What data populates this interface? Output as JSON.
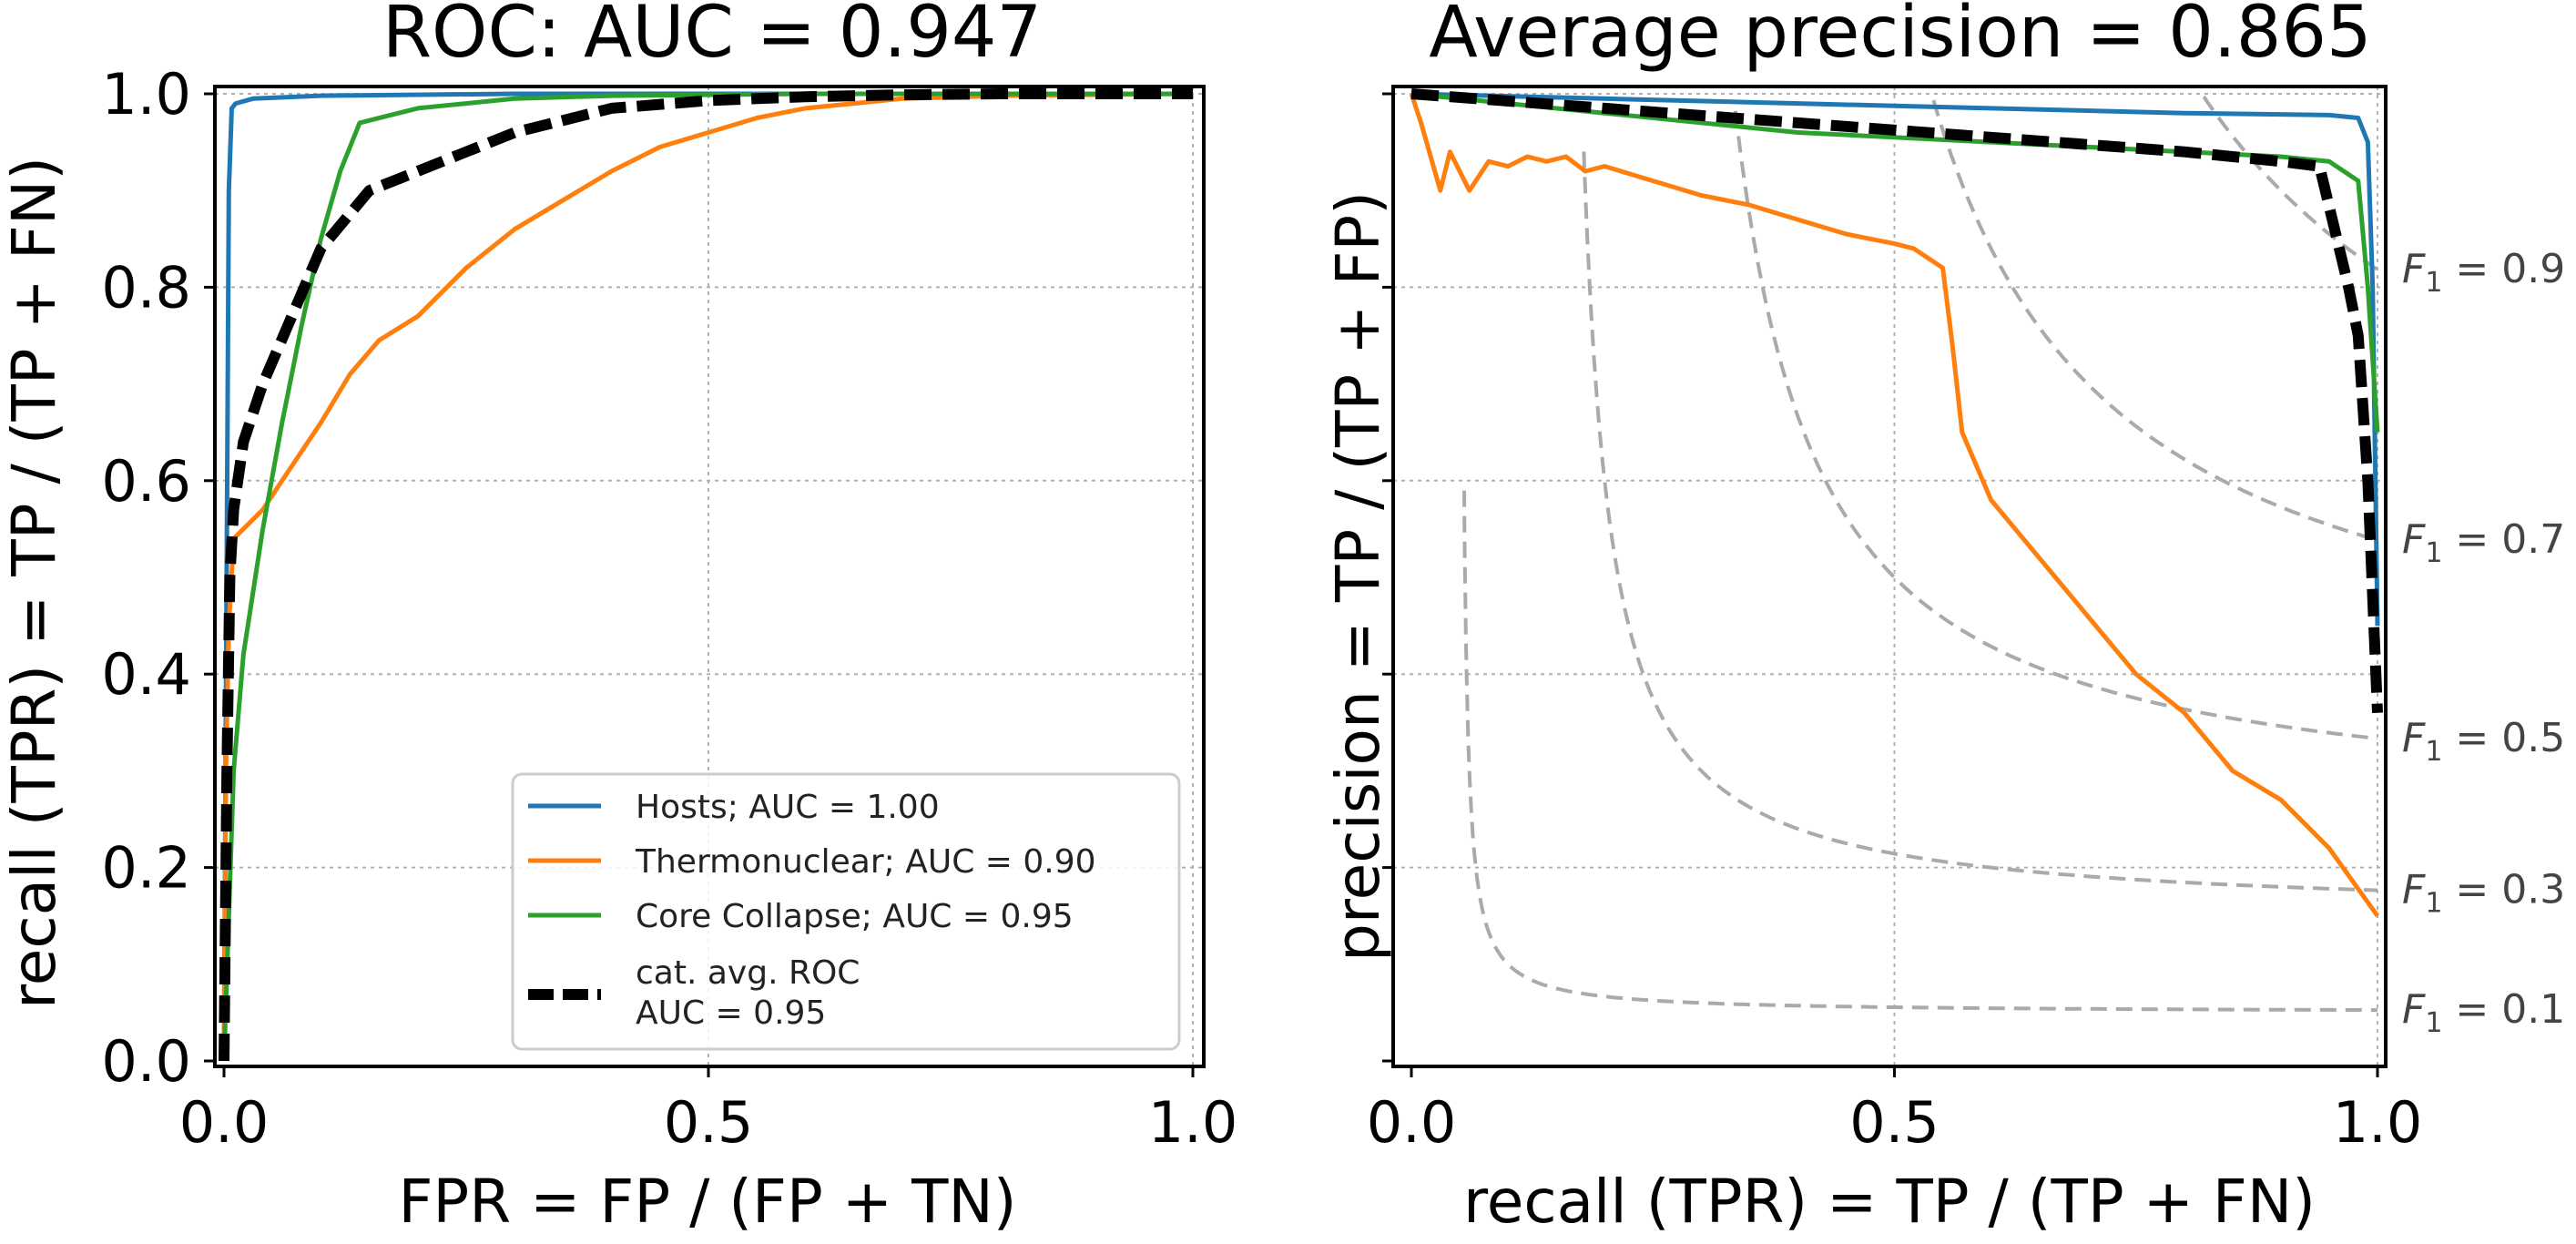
{
  "figure": {
    "colors": {
      "hosts": "#1f77b4",
      "thermonuclear": "#ff7f0e",
      "core_collapse": "#2ca02c",
      "average": "#000000",
      "iso_f1": "#aaaaaa",
      "grid": "#b0b0b0"
    }
  },
  "chart_data": [
    {
      "type": "line",
      "title": "ROC: AUC = 0.947",
      "xlabel": "FPR = FP / (FP + TN)",
      "ylabel": "recall (TPR) = TP / (TP + FN)",
      "xlim": [
        0,
        1
      ],
      "ylim": [
        0,
        1
      ],
      "xticks": [
        "0.0",
        "0.5",
        "1.0"
      ],
      "yticks": [
        "0.0",
        "0.2",
        "0.4",
        "0.6",
        "0.8",
        "1.0"
      ],
      "grid": true,
      "legend_placement": "lower-right",
      "series": [
        {
          "name": "Hosts; AUC = 1.00",
          "x": [
            0,
            0.003,
            0.005,
            0.008,
            0.012,
            0.03,
            0.1,
            0.3,
            0.6,
            1.0
          ],
          "y": [
            0,
            0.55,
            0.9,
            0.985,
            0.99,
            0.995,
            0.998,
            1.0,
            1.0,
            1.0
          ]
        },
        {
          "name": "Thermonuclear; AUC = 0.90",
          "x": [
            0,
            0.002,
            0.005,
            0.01,
            0.02,
            0.04,
            0.06,
            0.08,
            0.1,
            0.13,
            0.16,
            0.2,
            0.25,
            0.3,
            0.35,
            0.4,
            0.45,
            0.5,
            0.55,
            0.6,
            0.65,
            0.7,
            0.8,
            0.9,
            1.0
          ],
          "y": [
            0,
            0.3,
            0.45,
            0.54,
            0.55,
            0.57,
            0.6,
            0.63,
            0.66,
            0.71,
            0.745,
            0.77,
            0.82,
            0.86,
            0.89,
            0.92,
            0.945,
            0.96,
            0.975,
            0.985,
            0.99,
            0.995,
            0.998,
            0.999,
            1.0
          ]
        },
        {
          "name": "Core Collapse; AUC = 0.95",
          "x": [
            0,
            0.005,
            0.01,
            0.02,
            0.04,
            0.06,
            0.08,
            0.1,
            0.12,
            0.14,
            0.2,
            0.3,
            0.4,
            0.5,
            0.6,
            0.8,
            1.0
          ],
          "y": [
            0,
            0.15,
            0.3,
            0.42,
            0.55,
            0.66,
            0.76,
            0.85,
            0.92,
            0.97,
            0.985,
            0.995,
            0.998,
            0.999,
            1.0,
            1.0,
            1.0
          ]
        },
        {
          "name": "cat. avg. ROC\nAUC = 0.95",
          "x": [
            0,
            0.003,
            0.006,
            0.01,
            0.02,
            0.04,
            0.07,
            0.1,
            0.15,
            0.2,
            0.3,
            0.4,
            0.5,
            0.6,
            0.7,
            0.8,
            1.0
          ],
          "y": [
            0,
            0.3,
            0.5,
            0.57,
            0.64,
            0.7,
            0.77,
            0.84,
            0.9,
            0.92,
            0.96,
            0.985,
            0.993,
            0.997,
            0.999,
            1.0,
            1.0
          ]
        }
      ]
    },
    {
      "type": "line",
      "title": "Average precision = 0.865",
      "xlabel": "recall (TPR) = TP / (TP + FN)",
      "ylabel": "precision = TP / (TP + FP)",
      "xlim": [
        0,
        1
      ],
      "ylim": [
        0,
        1
      ],
      "xticks": [
        "0.0",
        "0.5",
        "1.0"
      ],
      "yticks_shown_as_labels": false,
      "grid": true,
      "iso_f1_curves": [
        {
          "label": "F",
          "sub": "1",
          "value_text": " = 0.9",
          "f": 0.9
        },
        {
          "label": "F",
          "sub": "1",
          "value_text": " = 0.7",
          "f": 0.7
        },
        {
          "label": "F",
          "sub": "1",
          "value_text": " = 0.5",
          "f": 0.5
        },
        {
          "label": "F",
          "sub": "1",
          "value_text": " = 0.3",
          "f": 0.3
        },
        {
          "label": "F",
          "sub": "1",
          "value_text": " = 0.1",
          "f": 0.1
        }
      ],
      "series": [
        {
          "name": "Hosts",
          "x": [
            0,
            0.2,
            0.4,
            0.6,
            0.8,
            0.95,
            0.98,
            0.99,
            0.995,
            1.0
          ],
          "y": [
            1.0,
            0.995,
            0.99,
            0.985,
            0.98,
            0.978,
            0.975,
            0.95,
            0.8,
            0.45
          ]
        },
        {
          "name": "Thermonuclear",
          "x": [
            0,
            0.01,
            0.03,
            0.04,
            0.06,
            0.08,
            0.1,
            0.12,
            0.14,
            0.16,
            0.18,
            0.2,
            0.25,
            0.3,
            0.35,
            0.4,
            0.45,
            0.5,
            0.52,
            0.55,
            0.56,
            0.57,
            0.6,
            0.65,
            0.7,
            0.75,
            0.8,
            0.85,
            0.9,
            0.95,
            1.0
          ],
          "y": [
            1.0,
            0.97,
            0.9,
            0.94,
            0.9,
            0.93,
            0.925,
            0.935,
            0.93,
            0.935,
            0.92,
            0.925,
            0.91,
            0.895,
            0.885,
            0.87,
            0.855,
            0.845,
            0.84,
            0.82,
            0.74,
            0.65,
            0.58,
            0.52,
            0.46,
            0.4,
            0.36,
            0.3,
            0.27,
            0.22,
            0.15
          ]
        },
        {
          "name": "Core Collapse",
          "x": [
            0,
            0.2,
            0.4,
            0.6,
            0.8,
            0.9,
            0.95,
            0.98,
            0.99,
            1.0
          ],
          "y": [
            1.0,
            0.98,
            0.96,
            0.95,
            0.94,
            0.935,
            0.93,
            0.91,
            0.8,
            0.65
          ]
        },
        {
          "name": "cat. avg.",
          "x": [
            0,
            0.2,
            0.4,
            0.6,
            0.8,
            0.9,
            0.94,
            0.97,
            0.98,
            0.99,
            1.0
          ],
          "y": [
            1.0,
            0.985,
            0.97,
            0.955,
            0.94,
            0.93,
            0.925,
            0.8,
            0.75,
            0.6,
            0.36
          ]
        }
      ]
    }
  ]
}
